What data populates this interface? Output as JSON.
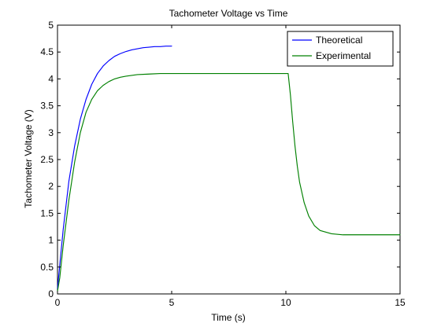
{
  "chart_data": {
    "type": "line",
    "title": "Tachometer Voltage vs Time",
    "xlabel": "Time (s)",
    "ylabel": "Tachometer Voltage (V)",
    "xlim": [
      0,
      15
    ],
    "ylim": [
      0,
      5
    ],
    "xticks": [
      0,
      5,
      10,
      15
    ],
    "xtick_labels": [
      "0",
      "5",
      "10",
      "15"
    ],
    "yticks": [
      0,
      0.5,
      1,
      1.5,
      2,
      2.5,
      3,
      3.5,
      4,
      4.5,
      5
    ],
    "ytick_labels": [
      "0",
      "0.5",
      "1",
      "1.5",
      "2",
      "2.5",
      "3",
      "3.5",
      "4",
      "4.5",
      "5"
    ],
    "grid": false,
    "legend_position": "top-right",
    "series": [
      {
        "name": "Theoretical",
        "color": "#0000ff",
        "x": [
          0,
          0.25,
          0.5,
          0.75,
          1.0,
          1.25,
          1.5,
          1.75,
          2.0,
          2.25,
          2.5,
          2.75,
          3.0,
          3.25,
          3.5,
          3.75,
          4.0,
          4.25,
          4.5,
          4.75,
          5.0
        ],
        "y": [
          0.1,
          1.2,
          2.1,
          2.75,
          3.25,
          3.62,
          3.9,
          4.1,
          4.24,
          4.34,
          4.42,
          4.47,
          4.51,
          4.54,
          4.56,
          4.58,
          4.59,
          4.6,
          4.6,
          4.61,
          4.61
        ]
      },
      {
        "name": "Experimental",
        "color": "#008000",
        "x": [
          0,
          0.1,
          0.25,
          0.5,
          0.75,
          1.0,
          1.25,
          1.5,
          1.75,
          2.0,
          2.25,
          2.5,
          2.75,
          3.0,
          3.5,
          4.0,
          4.5,
          5.0,
          5.5,
          6.0,
          6.5,
          7.0,
          7.5,
          8.0,
          8.5,
          9.0,
          9.5,
          10.0,
          10.1,
          10.2,
          10.3,
          10.4,
          10.5,
          10.6,
          10.8,
          11.0,
          11.25,
          11.5,
          12.0,
          12.5,
          13.0,
          13.5,
          14.0,
          14.5,
          15.0
        ],
        "y": [
          0.05,
          0.3,
          0.9,
          1.75,
          2.45,
          3.0,
          3.38,
          3.62,
          3.78,
          3.88,
          3.95,
          4.0,
          4.03,
          4.05,
          4.08,
          4.09,
          4.1,
          4.1,
          4.1,
          4.1,
          4.1,
          4.1,
          4.1,
          4.1,
          4.1,
          4.1,
          4.1,
          4.1,
          4.1,
          3.7,
          3.2,
          2.75,
          2.38,
          2.08,
          1.7,
          1.45,
          1.27,
          1.18,
          1.12,
          1.1,
          1.1,
          1.1,
          1.1,
          1.1,
          1.1
        ]
      }
    ]
  }
}
